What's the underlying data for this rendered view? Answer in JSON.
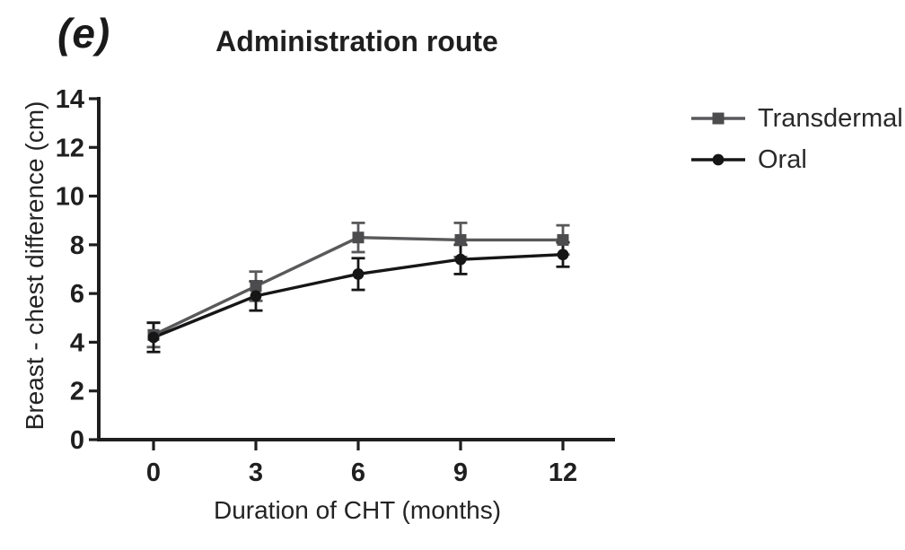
{
  "panel_label": "(e)",
  "chart_data": {
    "type": "line",
    "title": "Administration route",
    "xlabel": "Duration of CHT (months)",
    "ylabel": "Breast - chest difference (cm)",
    "x": [
      0,
      3,
      6,
      9,
      12
    ],
    "xticks": [
      "0",
      "3",
      "6",
      "9",
      "12"
    ],
    "yticks": [
      "0",
      "2",
      "4",
      "6",
      "8",
      "10",
      "12",
      "14"
    ],
    "ytick_values": [
      0,
      2,
      4,
      6,
      8,
      10,
      12,
      14
    ],
    "ylim": [
      0,
      14
    ],
    "xlim": [
      -1.6,
      13.6
    ],
    "grid": false,
    "legend_position": "right",
    "error_bars": true,
    "series": [
      {
        "name": "Transdermal",
        "marker": "square",
        "color": "#59595b",
        "marker_color": "#4c4c4e",
        "values": [
          4.3,
          6.3,
          8.3,
          8.2,
          8.2
        ],
        "errors": [
          0.5,
          0.6,
          0.6,
          0.7,
          0.6
        ]
      },
      {
        "name": "Oral",
        "marker": "circle",
        "color": "#161616",
        "marker_color": "#161616",
        "values": [
          4.2,
          5.9,
          6.8,
          7.4,
          7.6
        ],
        "errors": [
          0.6,
          0.6,
          0.65,
          0.6,
          0.5
        ]
      }
    ]
  },
  "colors": {
    "axis": "#1e1e1e",
    "tick_text": "#1f1f1f",
    "background": "#ffffff"
  }
}
